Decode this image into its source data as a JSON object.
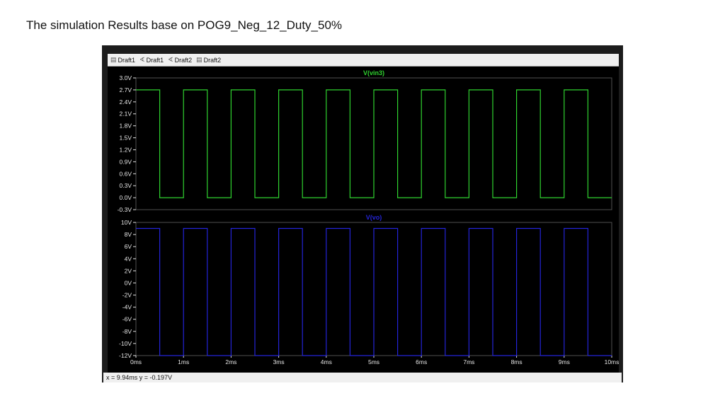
{
  "slide": {
    "title": "The simulation Results base on POG9_Neg_12_Duty_50%"
  },
  "window": {
    "tabs": [
      {
        "label": "Draft1",
        "icon": "schematic-icon"
      },
      {
        "label": "Draft1",
        "icon": "probe-icon"
      },
      {
        "label": "Draft2",
        "icon": "probe-icon"
      },
      {
        "label": "Draft2",
        "icon": "waveform-icon"
      }
    ],
    "status": {
      "text": "x = 9.94ms   y = -0.197V"
    }
  },
  "colors": {
    "panel_bg": "#000000",
    "grid": "#505050",
    "trace_top": "#2fd32f",
    "trace_bottom": "#2424d8",
    "axis_text": "#e6e6e6"
  },
  "chart_data": [
    {
      "type": "line",
      "title": "V(vin3)",
      "xlim": [
        0,
        10
      ],
      "ylim": [
        -0.3,
        3.0
      ],
      "yticks": [
        "3.0V",
        "2.7V",
        "2.4V",
        "2.1V",
        "1.8V",
        "1.5V",
        "1.2V",
        "0.9V",
        "0.6V",
        "0.3V",
        "0.0V",
        "-0.3V"
      ],
      "ytick_values": [
        3.0,
        2.7,
        2.4,
        2.1,
        1.8,
        1.5,
        1.2,
        0.9,
        0.6,
        0.3,
        0.0,
        -0.3
      ],
      "series": [
        {
          "name": "V(vin3)",
          "color": "#2fd32f",
          "x": [
            0,
            0.5,
            0.5,
            1.0,
            1.0,
            1.5,
            1.5,
            2.0,
            2.0,
            2.5,
            2.5,
            3.0,
            3.0,
            3.5,
            3.5,
            4.0,
            4.0,
            4.5,
            4.5,
            5.0,
            5.0,
            5.5,
            5.5,
            6.0,
            6.0,
            6.5,
            6.5,
            7.0,
            7.0,
            7.5,
            7.5,
            8.0,
            8.0,
            8.5,
            8.5,
            9.0,
            9.0,
            9.5,
            9.5,
            10.0
          ],
          "y": [
            2.7,
            2.7,
            0,
            0,
            2.7,
            2.7,
            0,
            0,
            2.7,
            2.7,
            0,
            0,
            2.7,
            2.7,
            0,
            0,
            2.7,
            2.7,
            0,
            0,
            2.7,
            2.7,
            0,
            0,
            2.7,
            2.7,
            0,
            0,
            2.7,
            2.7,
            0,
            0,
            2.7,
            2.7,
            0,
            0,
            2.7,
            2.7,
            0,
            0
          ]
        }
      ]
    },
    {
      "type": "line",
      "title": "V(vo)",
      "xlabel": "",
      "xlim": [
        0,
        10
      ],
      "ylim": [
        -12,
        10
      ],
      "xticks": [
        "0ms",
        "1ms",
        "2ms",
        "3ms",
        "4ms",
        "5ms",
        "6ms",
        "7ms",
        "8ms",
        "9ms",
        "10ms"
      ],
      "xtick_values": [
        0,
        1,
        2,
        3,
        4,
        5,
        6,
        7,
        8,
        9,
        10
      ],
      "yticks": [
        "10V",
        "8V",
        "6V",
        "4V",
        "2V",
        "0V",
        "-2V",
        "-4V",
        "-6V",
        "-8V",
        "-10V",
        "-12V"
      ],
      "ytick_values": [
        10,
        8,
        6,
        4,
        2,
        0,
        -2,
        -4,
        -6,
        -8,
        -10,
        -12
      ],
      "series": [
        {
          "name": "V(vo)",
          "color": "#2424d8",
          "x": [
            0,
            0.5,
            0.5,
            1.0,
            1.0,
            1.5,
            1.5,
            2.0,
            2.0,
            2.5,
            2.5,
            3.0,
            3.0,
            3.5,
            3.5,
            4.0,
            4.0,
            4.5,
            4.5,
            5.0,
            5.0,
            5.5,
            5.5,
            6.0,
            6.0,
            6.5,
            6.5,
            7.0,
            7.0,
            7.5,
            7.5,
            8.0,
            8.0,
            8.5,
            8.5,
            9.0,
            9.0,
            9.5,
            9.5,
            10.0
          ],
          "y": [
            9,
            9,
            -12,
            -12,
            9,
            9,
            -12,
            -12,
            9,
            9,
            -12,
            -12,
            9,
            9,
            -12,
            -12,
            9,
            9,
            -12,
            -12,
            9,
            9,
            -12,
            -12,
            9,
            9,
            -12,
            -12,
            9,
            9,
            -12,
            -12,
            9,
            9,
            -12,
            -12,
            9,
            9,
            -12,
            -12
          ]
        }
      ]
    }
  ]
}
